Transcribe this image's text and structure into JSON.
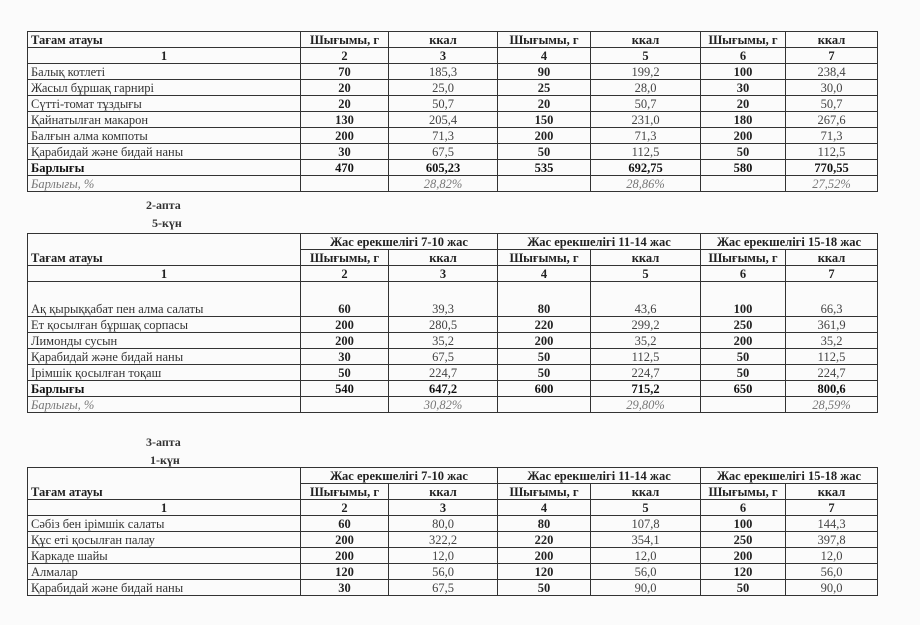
{
  "header": {
    "name": "Тағам атауы",
    "output": "Шығымы, г",
    "kcal": "ккал",
    "numbers": [
      "1",
      "2",
      "3",
      "4",
      "5",
      "6",
      "7"
    ],
    "age_groups": [
      "Жас ерекшелігі 7-10 жас",
      "Жас ерекшелігі 11-14 жас",
      "Жас ерекшелігі 15-18 жас"
    ]
  },
  "section2": {
    "week": "2-апта",
    "day": "5-күн"
  },
  "section3": {
    "week": "3-апта",
    "day": "1-күн"
  },
  "table1": {
    "rows": [
      [
        "Балық котлеті",
        "70",
        "185,3",
        "90",
        "199,2",
        "100",
        "238,4"
      ],
      [
        "Жасыл бұршақ гарнирі",
        "20",
        "25,0",
        "25",
        "28,0",
        "30",
        "30,0"
      ],
      [
        "Сүтті-томат тұздығы",
        "20",
        "50,7",
        "20",
        "50,7",
        "20",
        "50,7"
      ],
      [
        "Қайнатылған макарон",
        "130",
        "205,4",
        "150",
        "231,0",
        "180",
        "267,6"
      ],
      [
        "Балғын алма компоты",
        "200",
        "71,3",
        "200",
        "71,3",
        "200",
        "71,3"
      ],
      [
        "Қарабидай және бидай наны",
        "30",
        "67,5",
        "50",
        "112,5",
        "50",
        "112,5"
      ]
    ],
    "total": [
      "Барлығы",
      "470",
      "605,23",
      "535",
      "692,75",
      "580",
      "770,55"
    ],
    "percent": [
      "Барлығы, %",
      "",
      "28,82%",
      "",
      "28,86%",
      "",
      "27,52%"
    ]
  },
  "table2": {
    "rows": [
      [
        "Ақ қырыққабат пен алма салаты",
        "60",
        "39,3",
        "80",
        "43,6",
        "100",
        "66,3"
      ],
      [
        "Ет қосылған бұршақ сорпасы",
        "200",
        "280,5",
        "220",
        "299,2",
        "250",
        "361,9"
      ],
      [
        "Лимонды сусын",
        "200",
        "35,2",
        "200",
        "35,2",
        "200",
        "35,2"
      ],
      [
        "Қарабидай және бидай наны",
        "30",
        "67,5",
        "50",
        "112,5",
        "50",
        "112,5"
      ],
      [
        "Ірімшік қосылған тоқаш",
        "50",
        "224,7",
        "50",
        "224,7",
        "50",
        "224,7"
      ]
    ],
    "total": [
      "Барлығы",
      "540",
      "647,2",
      "600",
      "715,2",
      "650",
      "800,6"
    ],
    "percent": [
      "Барлығы, %",
      "",
      "30,82%",
      "",
      "29,80%",
      "",
      "28,59%"
    ]
  },
  "table3": {
    "rows": [
      [
        "Сәбіз бен ірімшік салаты",
        "60",
        "80,0",
        "80",
        "107,8",
        "100",
        "144,3"
      ],
      [
        "Құс еті қосылған палау",
        "200",
        "322,2",
        "220",
        "354,1",
        "250",
        "397,8"
      ],
      [
        "Каркаде шайы",
        "200",
        "12,0",
        "200",
        "12,0",
        "200",
        "12,0"
      ],
      [
        "Алмалар",
        "120",
        "56,0",
        "120",
        "56,0",
        "120",
        "56,0"
      ],
      [
        "Қарабидай және бидай наны",
        "30",
        "67,5",
        "50",
        "90,0",
        "50",
        "90,0"
      ]
    ]
  }
}
